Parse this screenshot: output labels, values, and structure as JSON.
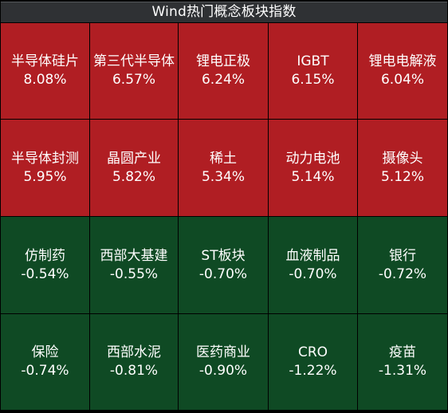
{
  "title": "Wind热门概念板块指数",
  "colors": {
    "up": "#b01e23",
    "down": "#0f4a24",
    "title_bar": "#2f3134",
    "text": "#ffffff"
  },
  "rows": [
    [
      {
        "name": "半导体硅片",
        "change": "8.08%",
        "trend": "up"
      },
      {
        "name": "第三代半导体",
        "change": "6.57%",
        "trend": "up"
      },
      {
        "name": "锂电正极",
        "change": "6.24%",
        "trend": "up"
      },
      {
        "name": "IGBT",
        "change": "6.15%",
        "trend": "up"
      },
      {
        "name": "锂电电解液",
        "change": "6.04%",
        "trend": "up"
      }
    ],
    [
      {
        "name": "半导体封测",
        "change": "5.95%",
        "trend": "up"
      },
      {
        "name": "晶圆产业",
        "change": "5.82%",
        "trend": "up"
      },
      {
        "name": "稀土",
        "change": "5.34%",
        "trend": "up"
      },
      {
        "name": "动力电池",
        "change": "5.14%",
        "trend": "up"
      },
      {
        "name": "摄像头",
        "change": "5.12%",
        "trend": "up"
      }
    ],
    [
      {
        "name": "仿制药",
        "change": "-0.54%",
        "trend": "down"
      },
      {
        "name": "西部大基建",
        "change": "-0.55%",
        "trend": "down"
      },
      {
        "name": "ST板块",
        "change": "-0.70%",
        "trend": "down"
      },
      {
        "name": "血液制品",
        "change": "-0.70%",
        "trend": "down"
      },
      {
        "name": "银行",
        "change": "-0.72%",
        "trend": "down"
      }
    ],
    [
      {
        "name": "保险",
        "change": "-0.74%",
        "trend": "down"
      },
      {
        "name": "西部水泥",
        "change": "-0.81%",
        "trend": "down"
      },
      {
        "name": "医药商业",
        "change": "-0.90%",
        "trend": "down"
      },
      {
        "name": "CRO",
        "change": "-1.22%",
        "trend": "down"
      },
      {
        "name": "疫苗",
        "change": "-1.31%",
        "trend": "down"
      }
    ]
  ]
}
